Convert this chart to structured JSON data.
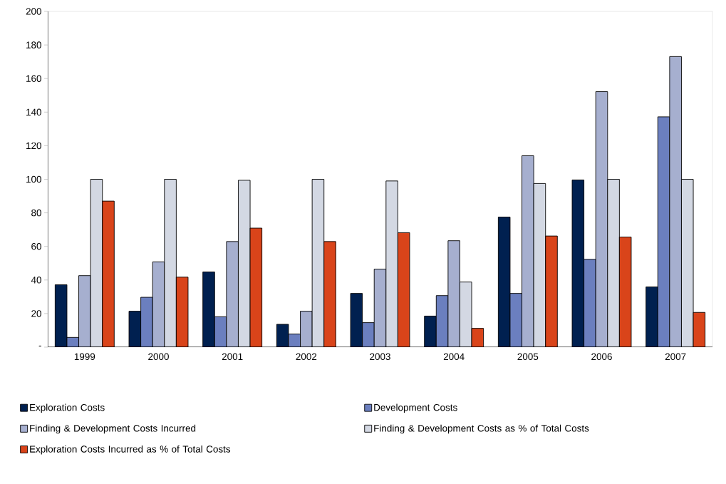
{
  "chart_data": {
    "type": "bar",
    "categories": [
      "1999",
      "2000",
      "2001",
      "2002",
      "2003",
      "2004",
      "2005",
      "2006",
      "2007"
    ],
    "series": [
      {
        "name": "Exploration Costs",
        "color": "#002050",
        "values": [
          37.2,
          21.4,
          44.8,
          13.6,
          32,
          18.5,
          77.5,
          99.6,
          35.9
        ]
      },
      {
        "name": "Development Costs",
        "color": "#6b7fbf",
        "values": [
          5.8,
          29.7,
          18.1,
          7.8,
          14.6,
          30.7,
          32,
          52.3,
          137.2
        ]
      },
      {
        "name": "Finding & Development Costs Incurred",
        "color": "#a6afcf",
        "values": [
          42.6,
          50.8,
          62.9,
          21.4,
          46.5,
          63.4,
          114,
          152.2,
          173.1
        ]
      },
      {
        "name": "Finding & Development Costs as % of Total Costs",
        "color": "#d3d8e3",
        "values": [
          100,
          100,
          99.4,
          100,
          99,
          38.8,
          97.5,
          100,
          100
        ]
      },
      {
        "name": "Exploration Costs Incurred as % of Total Costs",
        "color": "#d9441a",
        "values": [
          87,
          41.7,
          70.9,
          62.9,
          68.2,
          11.2,
          66.2,
          65.6,
          20.7
        ]
      }
    ],
    "ylim": [
      0,
      200
    ],
    "yticks": [
      {
        "value": 0,
        "label": "-"
      },
      20,
      40,
      60,
      80,
      100,
      120,
      140,
      160,
      180,
      200
    ],
    "legend": "bottom"
  }
}
